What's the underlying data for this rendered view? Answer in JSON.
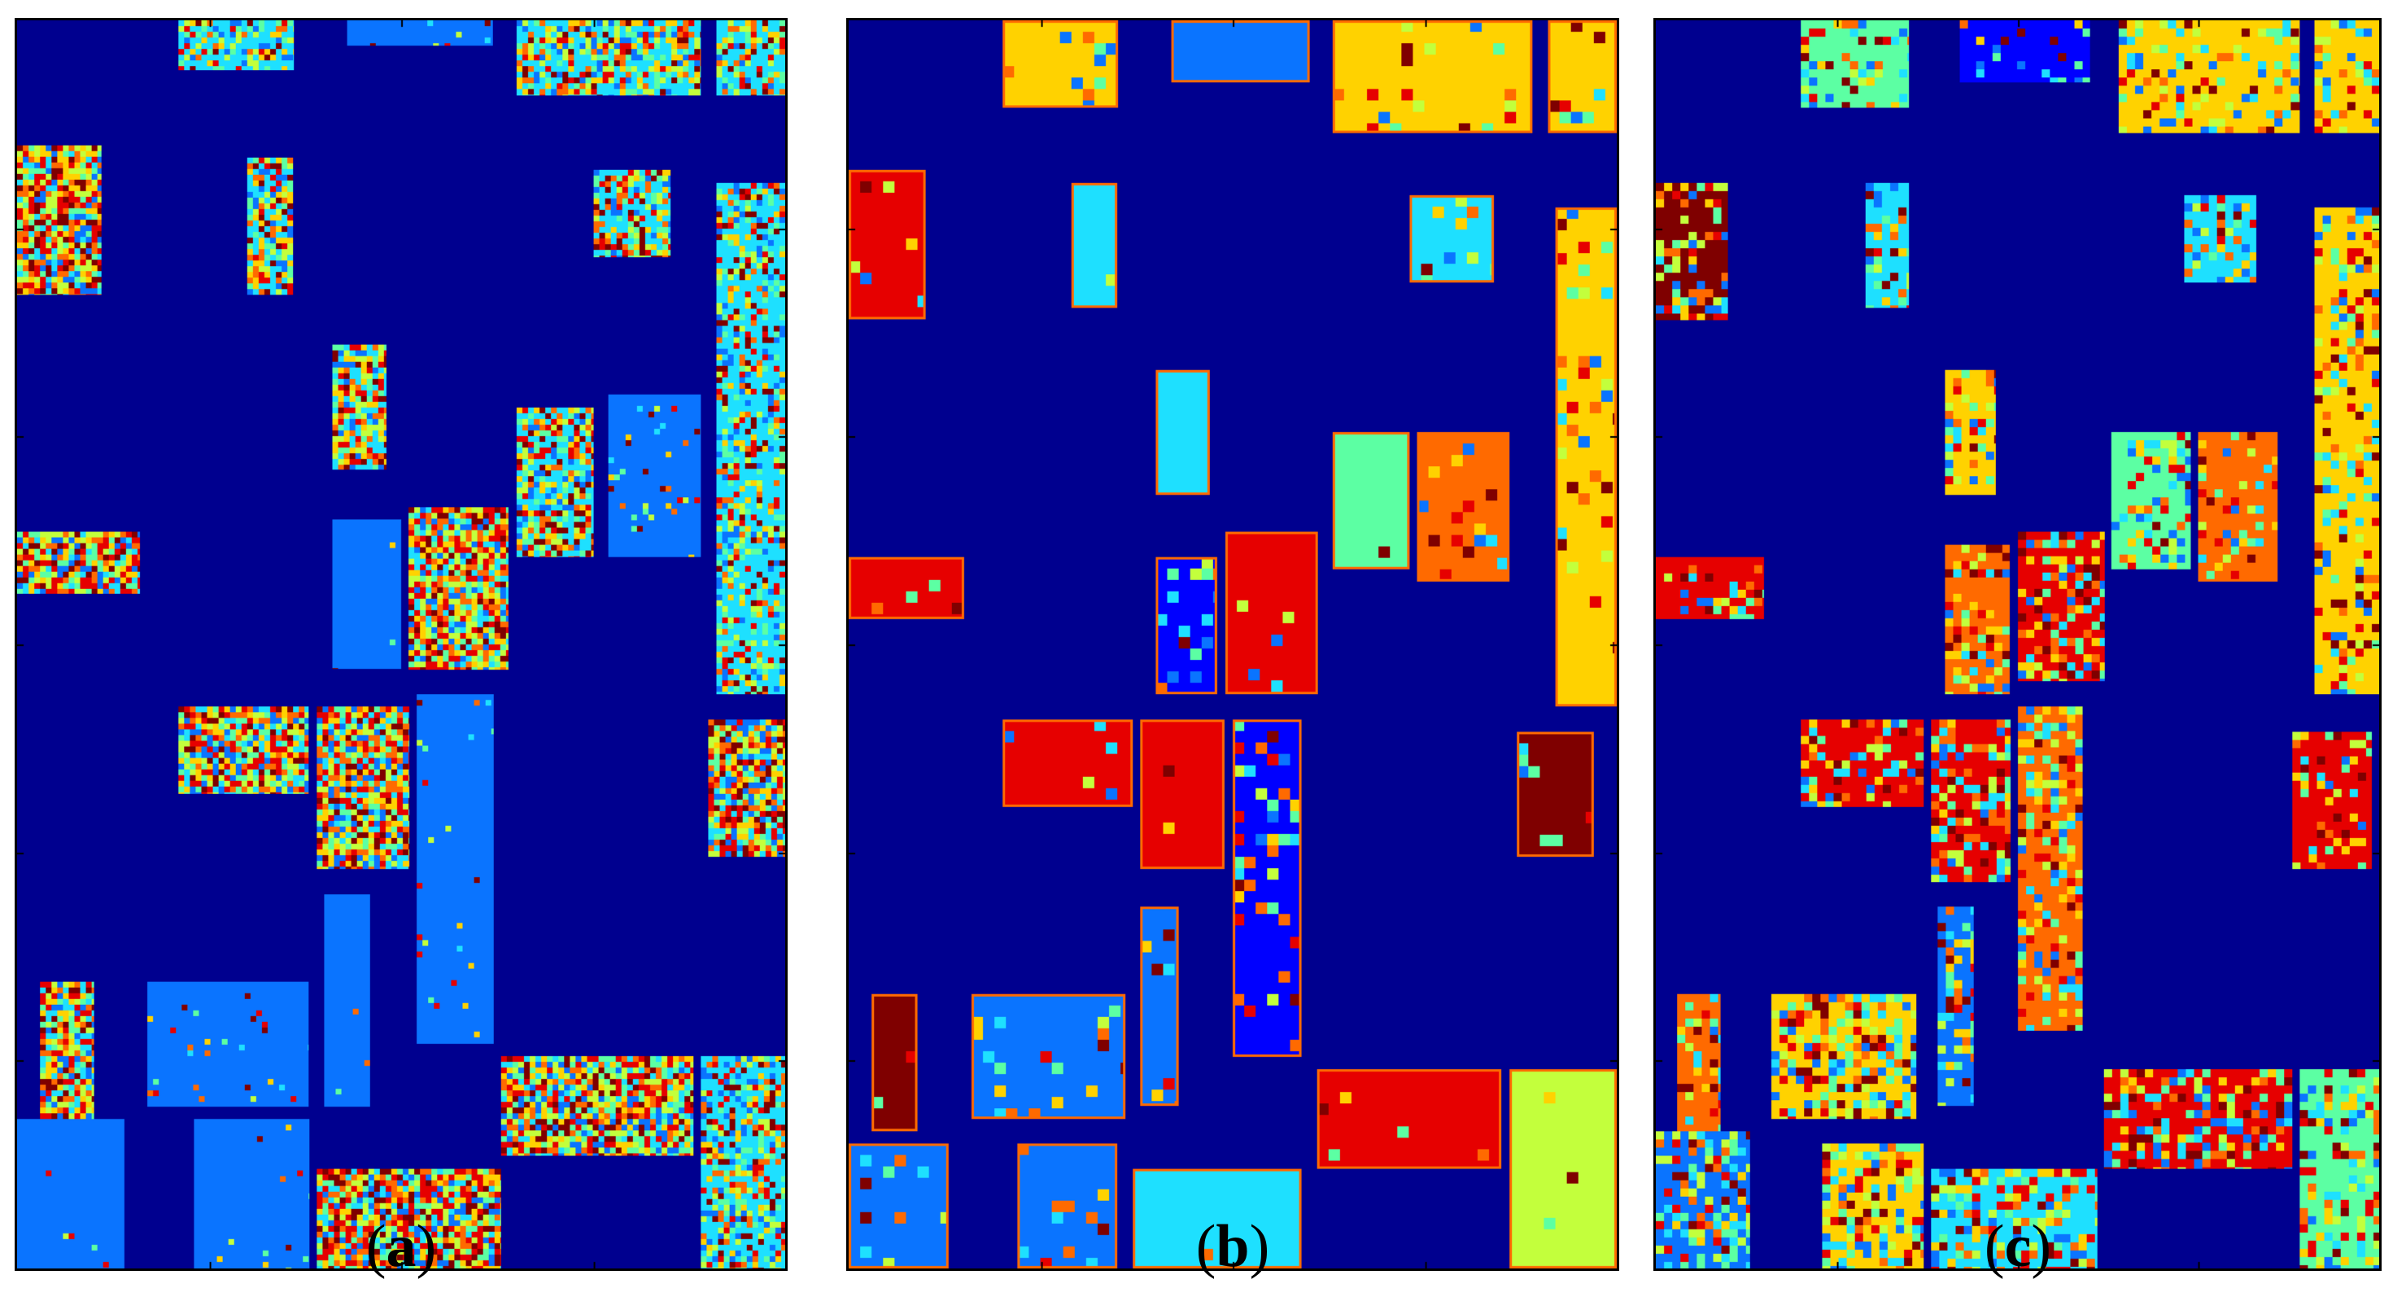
{
  "figure": {
    "panels": [
      {
        "id": "a",
        "caption_letter": "a",
        "style": "noisy"
      },
      {
        "id": "b",
        "caption_letter": "b",
        "style": "smooth"
      },
      {
        "id": "c",
        "caption_letter": "c",
        "style": "blotchy"
      }
    ],
    "colors": {
      "background": "#00008f",
      "blue": "#0a74ff",
      "bright_blue": "#0000ff",
      "cyan": "#1ee0ff",
      "light_green": "#5cffa3",
      "yellow_green": "#c3ff3c",
      "yellow": "#ffd200",
      "orange": "#ff6a00",
      "red": "#e60000",
      "dark_red": "#7f0000"
    }
  }
}
